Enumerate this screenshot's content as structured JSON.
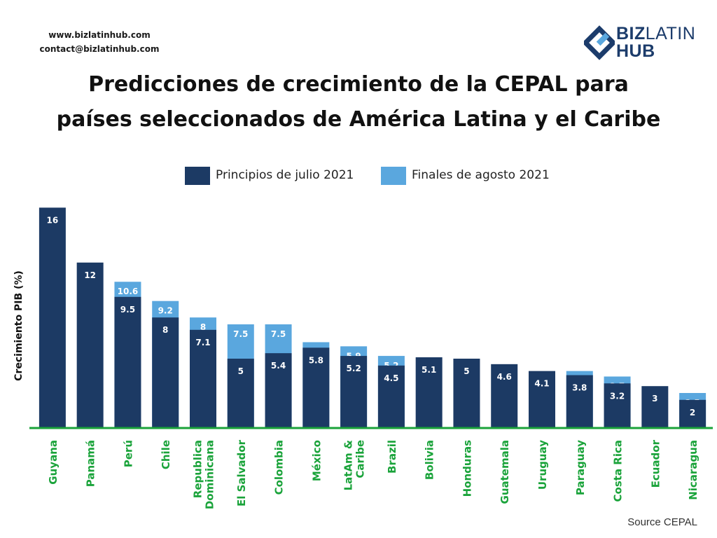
{
  "header": {
    "website": "www.bizlatinhub.com",
    "email": "contact@bizlatinhub.com",
    "logo_line1_bold": "BIZ",
    "logo_line1_light": "LATIN",
    "logo_line2": "HUB"
  },
  "title_line1": "Predicciones de crecimiento de la CEPAL para",
  "title_line2": "países seleccionados de América Latina y el Caribe",
  "source": "Source CEPAL",
  "colors": {
    "dark": "#1c3a64",
    "light": "#5aa7de",
    "axis": "#1aa33a",
    "category_text": "#1aa33a"
  },
  "chart_data": {
    "type": "bar",
    "title": "Predicciones de crecimiento de la CEPAL para países seleccionados de América Latina y el Caribe",
    "ylabel": "Crecimiento PIB (%)",
    "xlabel": "",
    "ylim": [
      0,
      16
    ],
    "grid": false,
    "legend_position": "top-center",
    "categories": [
      [
        "Guyana"
      ],
      [
        "Panamá"
      ],
      [
        "Perú"
      ],
      [
        "Chile"
      ],
      [
        "Republica",
        "Dominicana"
      ],
      [
        "El Salvador"
      ],
      [
        "Colombia"
      ],
      [
        "México"
      ],
      [
        "LatAm &",
        "Caribe"
      ],
      [
        "Brazil"
      ],
      [
        "Bolivia"
      ],
      [
        "Honduras"
      ],
      [
        "Guatemala"
      ],
      [
        "Uruguay"
      ],
      [
        "Paraguay"
      ],
      [
        "Costa Rica"
      ],
      [
        "Ecuador"
      ],
      [
        "Nicaragua"
      ]
    ],
    "series": [
      {
        "name": "Principios de julio 2021",
        "color": "#1c3a64",
        "values": [
          16,
          12,
          9.5,
          8,
          7.1,
          5,
          5.4,
          5.8,
          5.2,
          4.5,
          5.1,
          5,
          4.6,
          4.1,
          3.8,
          3.2,
          3,
          2
        ],
        "labels": [
          "16",
          "12",
          "9.5",
          "8",
          "7.1",
          "5",
          "5.4",
          "5.8",
          "5.2",
          "4.5",
          "5.1",
          "5",
          "4.6",
          "4.1",
          "3.8",
          "3.2",
          "3",
          "2"
        ]
      },
      {
        "name": "Finales de agosto 2021",
        "color": "#5aa7de",
        "values": [
          null,
          null,
          10.6,
          9.2,
          8,
          7.5,
          7.5,
          6.2,
          5.9,
          5.2,
          null,
          null,
          null,
          null,
          4.1,
          3.7,
          null,
          2.5
        ],
        "labels": [
          null,
          null,
          "10.6",
          "9.2",
          "8",
          "7.5",
          "7.5",
          "6.2",
          "5.9",
          "5.2",
          null,
          null,
          null,
          null,
          "4.1",
          "3.7",
          null,
          "2.5"
        ]
      }
    ]
  }
}
